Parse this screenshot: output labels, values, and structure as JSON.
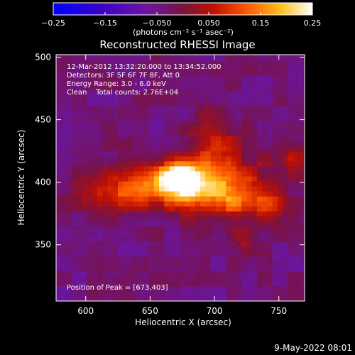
{
  "chart_data": {
    "type": "heatmap",
    "title": "Reconstructed RHESSI Image",
    "xlabel": "Heliocentric X (arcsec)",
    "ylabel": "Heliocentric Y (arcsec)",
    "xlim": [
      577,
      770
    ],
    "ylim": [
      305,
      502
    ],
    "xticks": [
      600,
      650,
      700,
      750
    ],
    "yticks": [
      350,
      400,
      450,
      500
    ],
    "colorbar": {
      "min": -0.25,
      "max": 0.25,
      "ticks": [
        -0.25,
        -0.15,
        -0.05,
        0.05,
        0.15,
        0.25
      ],
      "tick_labels": [
        "−0.25",
        "−0.15",
        "−0.050",
        "0.050",
        "0.15",
        "0.25"
      ],
      "unit_label": "(photons cm⁻² s⁻¹ asec⁻²)"
    },
    "annotations": [
      "12-Mar-2012 13:32:20.000 to 13:34:52.000",
      "Detectors: 3F 5F 6F 7F 8F, Att 0",
      "Energy Range: 3.0 - 6.0 keV",
      "Clean    Total counts: 2.76E+04"
    ],
    "peak_label": "Position of Peak = [673,403]",
    "peak": [
      673,
      403
    ],
    "sources": [
      {
        "x": 673,
        "y": 403,
        "amp": 0.3,
        "sx": 10,
        "sy": 8
      },
      {
        "x": 662,
        "y": 397,
        "amp": 0.14,
        "sx": 40,
        "sy": 12
      },
      {
        "x": 700,
        "y": 430,
        "amp": 0.09,
        "sx": 12,
        "sy": 22
      },
      {
        "x": 715,
        "y": 385,
        "amp": 0.1,
        "sx": 22,
        "sy": 10
      },
      {
        "x": 700,
        "y": 405,
        "amp": 0.08,
        "sx": 35,
        "sy": 18
      },
      {
        "x": 762,
        "y": 420,
        "amp": 0.09,
        "sx": 7,
        "sy": 8
      },
      {
        "x": 742,
        "y": 378,
        "amp": 0.06,
        "sx": 8,
        "sy": 10
      },
      {
        "x": 722,
        "y": 355,
        "amp": 0.05,
        "sx": 6,
        "sy": 10
      },
      {
        "x": 620,
        "y": 385,
        "amp": 0.06,
        "sx": 16,
        "sy": 10
      }
    ],
    "background": -0.04
  },
  "footer": {
    "timestamp": "9-May-2022 08:01"
  }
}
